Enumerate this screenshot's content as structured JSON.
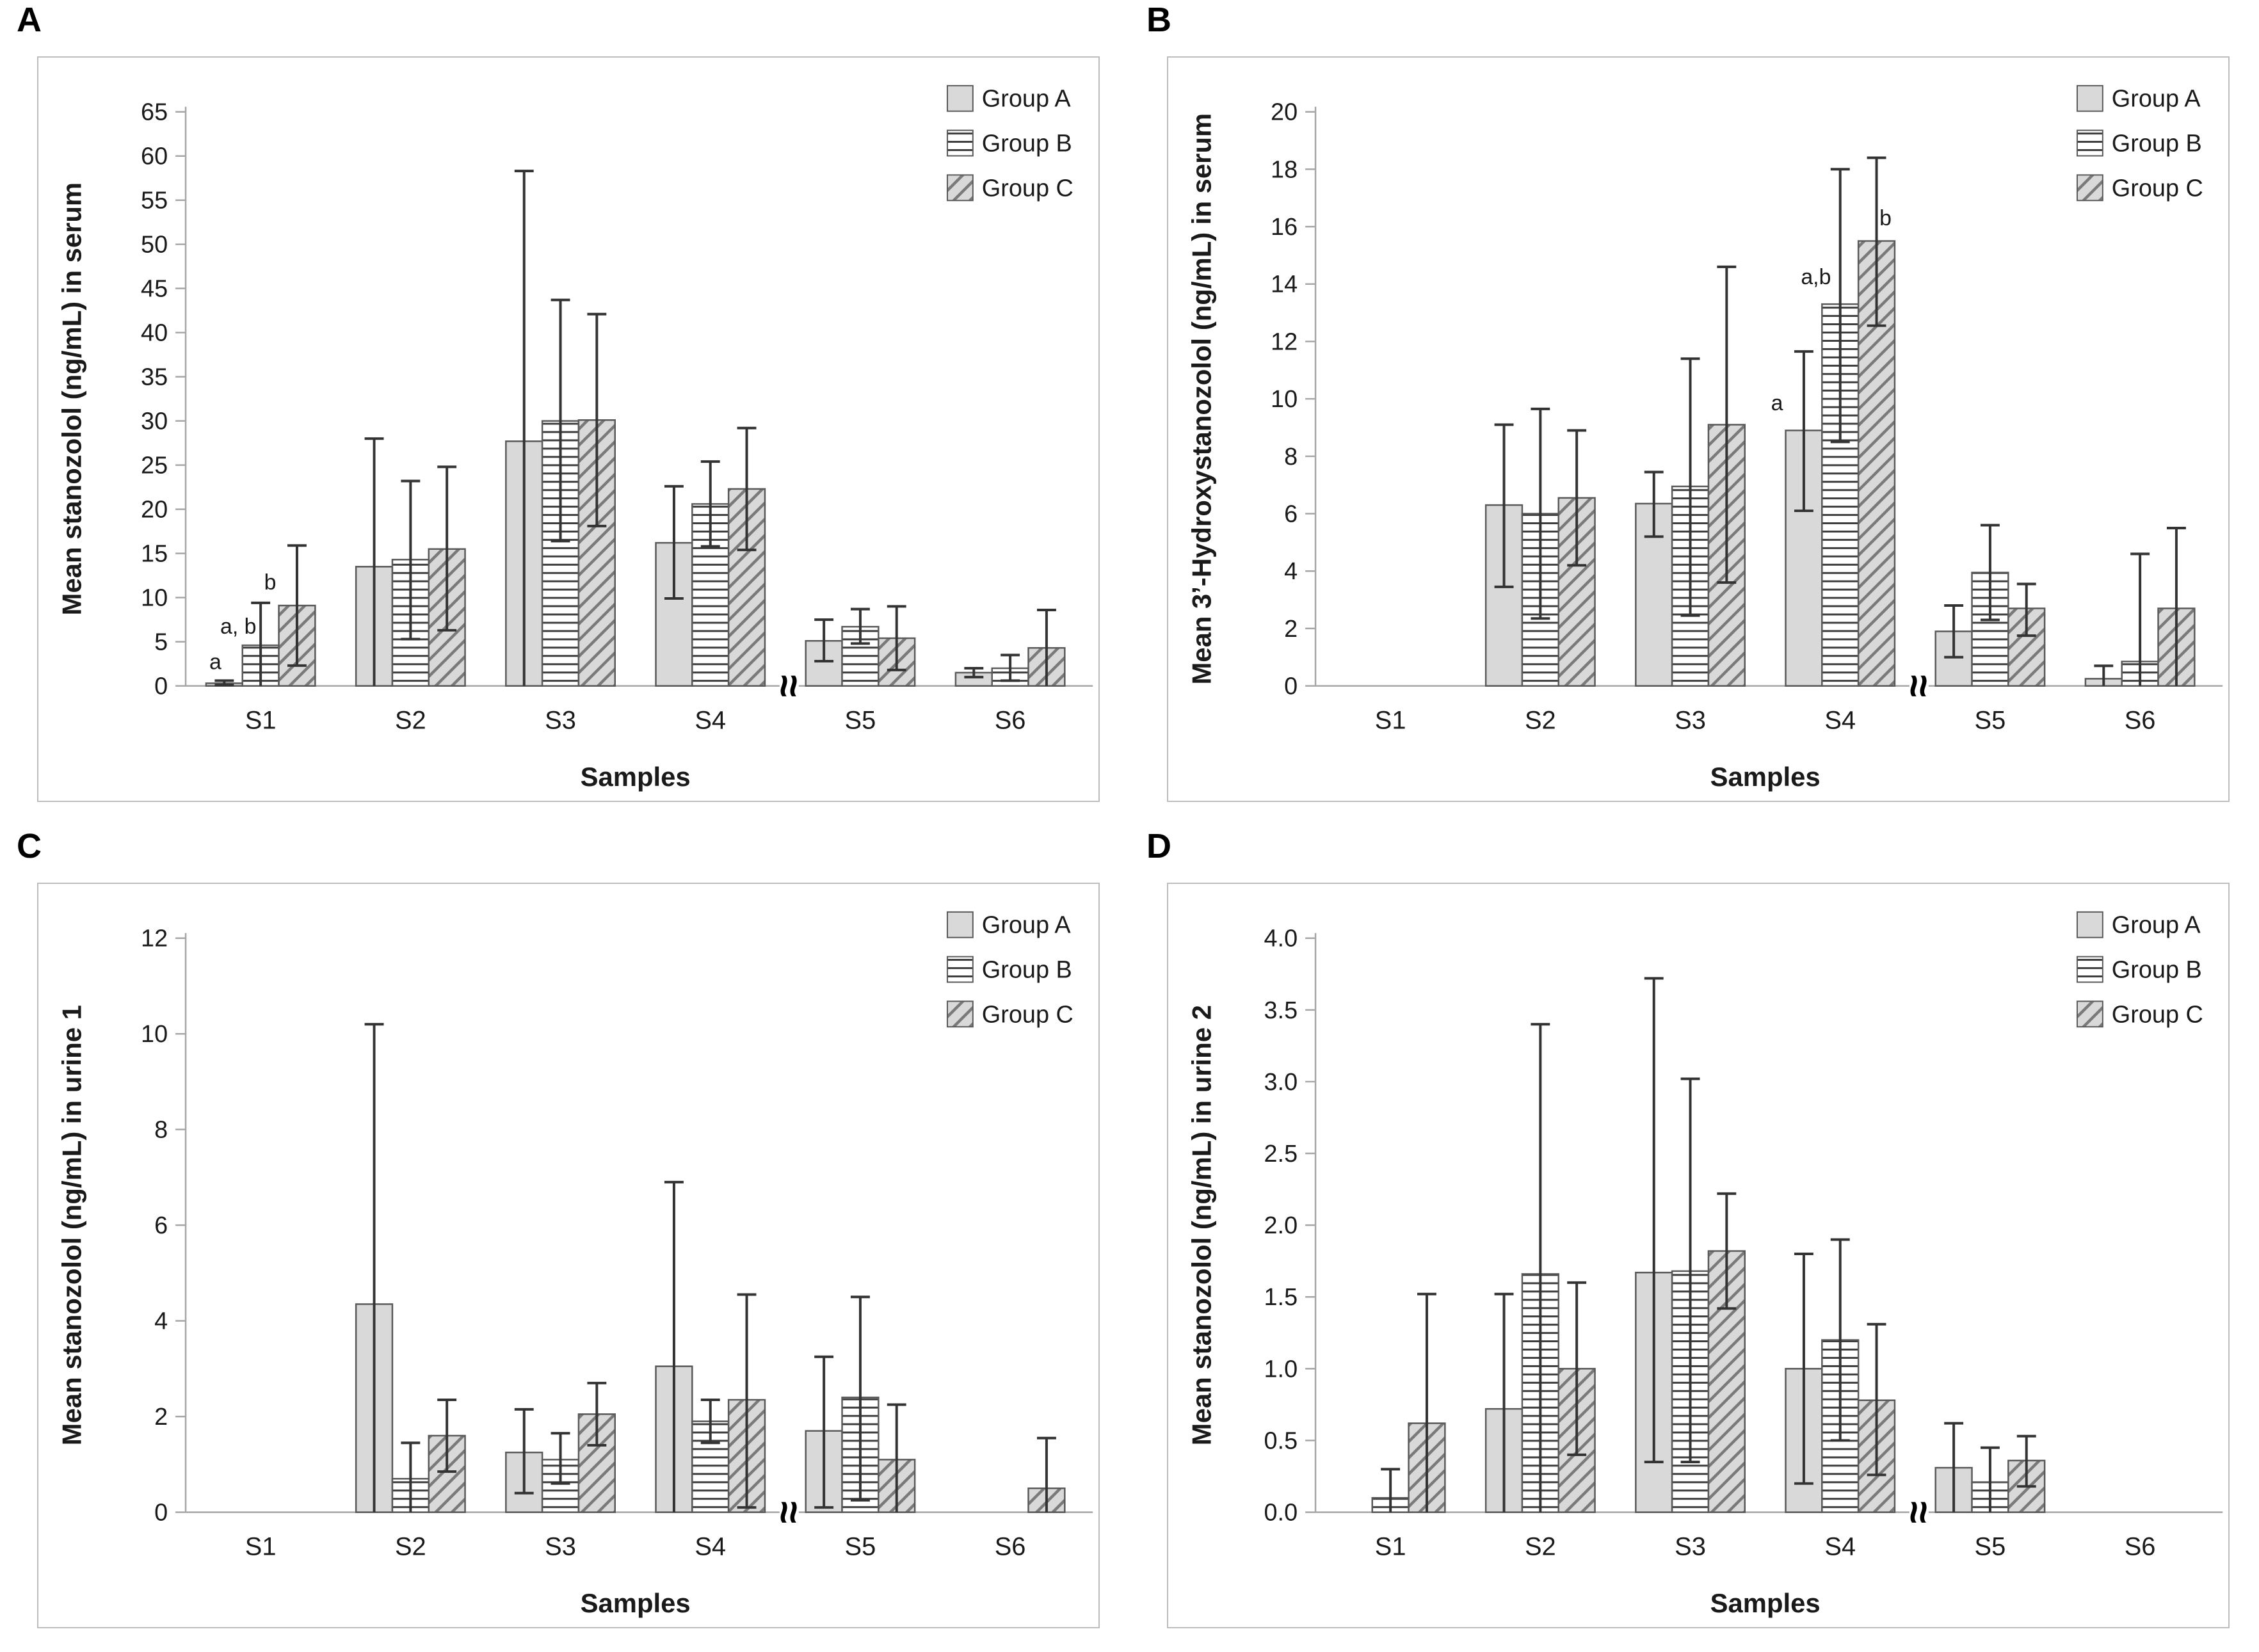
{
  "theme": {
    "bar_fill": "#d9d9d9",
    "bar_stroke": "#595959",
    "hline_color": "#3d3d3d",
    "diag_color": "#7a7a7a",
    "error_color": "#333333",
    "axis_color": "#a6a6a6",
    "text_color": "#1a1a1a",
    "panel_border": "#bdbdbd",
    "background": "#ffffff"
  },
  "legend": [
    "Group A",
    "Group B",
    "Group C"
  ],
  "chart_data": [
    {
      "id": "A",
      "type": "bar",
      "title_label": "A",
      "ylabel": "Mean stanozolol (ng/mL) in serum",
      "xlabel": "Samples",
      "categories": [
        "S1",
        "S2",
        "S3",
        "S4",
        "S5",
        "S6"
      ],
      "ymax": 65,
      "yticks": [
        "0",
        "5",
        "10",
        "15",
        "20",
        "25",
        "30",
        "35",
        "40",
        "45",
        "50",
        "55",
        "60",
        "65"
      ],
      "legend_position": "top-right",
      "grid": false,
      "axis_break_between": [
        "S4",
        "S5"
      ],
      "series": [
        {
          "name": "Group A",
          "pattern": "solid",
          "values": [
            0.3,
            13.5,
            27.7,
            16.2,
            5.1,
            1.5
          ],
          "err_lo": [
            0.1,
            0,
            0,
            9.9,
            2.8,
            1.0
          ],
          "err_hi": [
            0.6,
            28.0,
            58.3,
            22.6,
            7.5,
            2.0
          ]
        },
        {
          "name": "Group B",
          "pattern": "hlines",
          "values": [
            4.6,
            14.3,
            30.0,
            20.6,
            6.7,
            2.0
          ],
          "err_lo": [
            0,
            5.3,
            16.4,
            15.8,
            4.8,
            0.6
          ],
          "err_hi": [
            9.4,
            23.2,
            43.7,
            25.4,
            8.7,
            3.5
          ]
        },
        {
          "name": "Group C",
          "pattern": "diag",
          "values": [
            9.1,
            15.5,
            30.1,
            22.3,
            5.4,
            4.3
          ],
          "err_lo": [
            2.3,
            6.3,
            18.1,
            15.4,
            1.8,
            0
          ],
          "err_hi": [
            15.9,
            24.8,
            42.1,
            29.2,
            9.0,
            8.6
          ]
        }
      ],
      "annotations": [
        {
          "category_index": 0,
          "series_index": 0,
          "text": "a",
          "v": 1.9,
          "dx": -14,
          "anchor": "middle"
        },
        {
          "category_index": 0,
          "series_index": 1,
          "text": "a, b",
          "v": 5.9,
          "dx": -35,
          "anchor": "middle"
        },
        {
          "category_index": 0,
          "series_index": 2,
          "text": "b",
          "v": 10.9,
          "dx": -42,
          "anchor": "middle"
        }
      ]
    },
    {
      "id": "B",
      "type": "bar",
      "title_label": "B",
      "ylabel": "Mean 3’-Hydroxystanozolol (ng/mL) in serum",
      "xlabel": "Samples",
      "categories": [
        "S1",
        "S2",
        "S3",
        "S4",
        "S5",
        "S6"
      ],
      "ymax": 20,
      "yticks": [
        "0",
        "2",
        "4",
        "6",
        "8",
        "10",
        "12",
        "14",
        "16",
        "18",
        "20"
      ],
      "legend_position": "top-right",
      "grid": false,
      "axis_break_between": [
        "S4",
        "S5"
      ],
      "series": [
        {
          "name": "Group A",
          "pattern": "solid",
          "values": [
            null,
            6.3,
            6.35,
            8.9,
            1.9,
            0.25
          ],
          "err_lo": [
            null,
            3.45,
            5.2,
            6.1,
            1.0,
            0
          ],
          "err_hi": [
            null,
            9.1,
            7.45,
            11.65,
            2.8,
            0.7
          ]
        },
        {
          "name": "Group B",
          "pattern": "hlines",
          "values": [
            null,
            6.0,
            6.95,
            13.3,
            3.95,
            0.85
          ],
          "err_lo": [
            null,
            2.35,
            2.45,
            8.5,
            2.3,
            0
          ],
          "err_hi": [
            null,
            9.65,
            11.4,
            18.0,
            5.6,
            4.6
          ]
        },
        {
          "name": "Group C",
          "pattern": "diag",
          "values": [
            null,
            6.55,
            9.1,
            15.5,
            2.7,
            2.7
          ],
          "err_lo": [
            null,
            4.2,
            3.6,
            12.55,
            1.75,
            0
          ],
          "err_hi": [
            null,
            8.9,
            14.6,
            18.4,
            3.55,
            5.5
          ]
        }
      ],
      "annotations": [
        {
          "category_index": 3,
          "series_index": 0,
          "text": "a",
          "v": 9.6,
          "dx": -42,
          "anchor": "middle"
        },
        {
          "category_index": 3,
          "series_index": 1,
          "text": "a,b",
          "v": 14.0,
          "dx": -38,
          "anchor": "middle"
        },
        {
          "category_index": 3,
          "series_index": 2,
          "text": "b",
          "v": 16.05,
          "dx": 14,
          "anchor": "middle"
        }
      ]
    },
    {
      "id": "C",
      "type": "bar",
      "title_label": "C",
      "ylabel": "Mean stanozolol (ng/mL) in urine 1",
      "xlabel": "Samples",
      "categories": [
        "S1",
        "S2",
        "S3",
        "S4",
        "S5",
        "S6"
      ],
      "ymax": 12,
      "yticks": [
        "0",
        "2",
        "4",
        "6",
        "8",
        "10",
        "12"
      ],
      "legend_position": "top-right",
      "grid": false,
      "axis_break_between": [
        "S4",
        "S5"
      ],
      "series": [
        {
          "name": "Group A",
          "pattern": "solid",
          "values": [
            null,
            4.35,
            1.25,
            3.05,
            1.7,
            null
          ],
          "err_lo": [
            null,
            0,
            0.4,
            0,
            0.1,
            null
          ],
          "err_hi": [
            null,
            10.2,
            2.15,
            6.9,
            3.25,
            null
          ]
        },
        {
          "name": "Group B",
          "pattern": "hlines",
          "values": [
            null,
            0.7,
            1.1,
            1.9,
            2.4,
            null
          ],
          "err_lo": [
            null,
            0,
            0.6,
            1.45,
            0.25,
            null
          ],
          "err_hi": [
            null,
            1.45,
            1.65,
            2.35,
            4.5,
            null
          ]
        },
        {
          "name": "Group C",
          "pattern": "diag",
          "values": [
            null,
            1.6,
            2.05,
            2.35,
            1.1,
            0.5
          ],
          "err_lo": [
            null,
            0.85,
            1.4,
            0.1,
            0,
            0
          ],
          "err_hi": [
            null,
            2.35,
            2.7,
            4.55,
            2.25,
            1.55
          ]
        }
      ],
      "annotations": []
    },
    {
      "id": "D",
      "type": "bar",
      "title_label": "D",
      "ylabel": "Mean stanozolol (ng/mL) in urine 2",
      "xlabel": "Samples",
      "categories": [
        "S1",
        "S2",
        "S3",
        "S4",
        "S5",
        "S6"
      ],
      "ymax": 4.0,
      "yticks": [
        "0.0",
        "0.5",
        "1.0",
        "1.5",
        "2.0",
        "2.5",
        "3.0",
        "3.5",
        "4.0"
      ],
      "legend_position": "top-right",
      "grid": false,
      "axis_break_between": [
        "S4",
        "S5"
      ],
      "series": [
        {
          "name": "Group A",
          "pattern": "solid",
          "values": [
            null,
            0.72,
            1.67,
            1.0,
            0.31,
            null
          ],
          "err_lo": [
            null,
            0,
            0.35,
            0.2,
            0,
            null
          ],
          "err_hi": [
            null,
            1.52,
            3.72,
            1.8,
            0.62,
            null
          ]
        },
        {
          "name": "Group B",
          "pattern": "hlines",
          "values": [
            0.1,
            1.66,
            1.68,
            1.2,
            0.21,
            null
          ],
          "err_lo": [
            0,
            0,
            0.35,
            0.5,
            0,
            null
          ],
          "err_hi": [
            0.3,
            3.4,
            3.02,
            1.9,
            0.45,
            null
          ]
        },
        {
          "name": "Group C",
          "pattern": "diag",
          "values": [
            0.62,
            1.0,
            1.82,
            0.78,
            0.36,
            null
          ],
          "err_lo": [
            0,
            0.4,
            1.42,
            0.26,
            0.18,
            null
          ],
          "err_hi": [
            1.52,
            1.6,
            2.22,
            1.31,
            0.53,
            null
          ]
        }
      ],
      "annotations": []
    }
  ]
}
